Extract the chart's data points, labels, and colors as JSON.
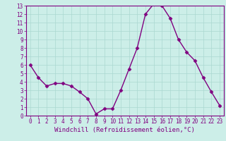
{
  "x": [
    0,
    1,
    2,
    3,
    4,
    5,
    6,
    7,
    8,
    9,
    10,
    11,
    12,
    13,
    14,
    15,
    16,
    17,
    18,
    19,
    20,
    21,
    22,
    23
  ],
  "y": [
    6.0,
    4.5,
    3.5,
    3.8,
    3.8,
    3.5,
    2.8,
    2.0,
    0.2,
    0.8,
    0.8,
    3.0,
    5.5,
    8.0,
    12.0,
    13.2,
    13.0,
    11.5,
    9.0,
    7.5,
    6.5,
    4.5,
    2.8,
    1.2
  ],
  "line_color": "#800080",
  "marker": "D",
  "markersize": 2.5,
  "linewidth": 1.0,
  "bg_color": "#cceee8",
  "grid_color": "#aad8d0",
  "xlabel": "Windchill (Refroidissement éolien,°C)",
  "ylim": [
    0,
    13
  ],
  "xlim": [
    -0.5,
    23.5
  ],
  "yticks": [
    0,
    1,
    2,
    3,
    4,
    5,
    6,
    7,
    8,
    9,
    10,
    11,
    12,
    13
  ],
  "xticks": [
    0,
    1,
    2,
    3,
    4,
    5,
    6,
    7,
    8,
    9,
    10,
    11,
    12,
    13,
    14,
    15,
    16,
    17,
    18,
    19,
    20,
    21,
    22,
    23
  ],
  "tick_fontsize": 5.5,
  "xlabel_fontsize": 6.5,
  "axis_color": "#800080",
  "tick_color": "#800080"
}
